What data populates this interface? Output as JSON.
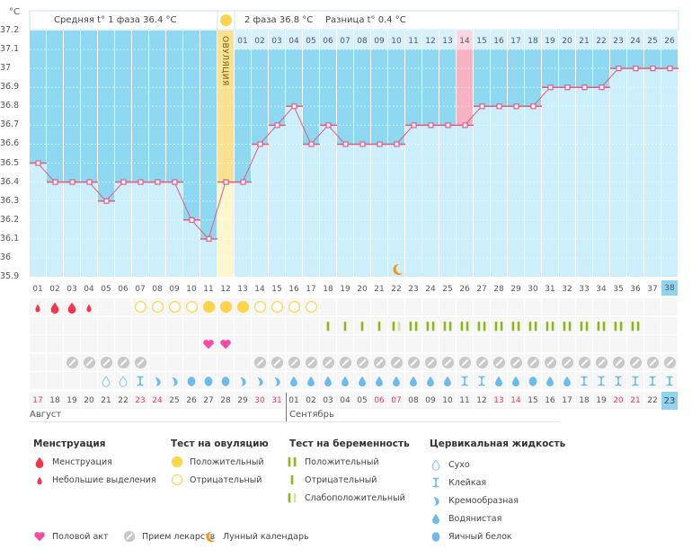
{
  "header": {
    "unit": "°C",
    "phase1": "Средняя t° 1 фаза 36.4 °C",
    "phase2": "2 фаза 36.8 °C",
    "diff": "Разница t° 0.4 °C",
    "ovulation_label": "ОВУЛЯЦИЯ"
  },
  "colors": {
    "upper": "#8fd8f2",
    "lower": "#cdeefb",
    "line": "#e45b82",
    "ovulation": "#fbe08f",
    "ovulation_low": "#fdf7cf",
    "highlight": "#f9b1c4",
    "weekend": "#f0366b"
  },
  "chart_data": {
    "type": "line",
    "ylim": [
      35.9,
      37.2
    ],
    "y_ticks": [
      "37.2",
      "37.1",
      "37",
      "36.9",
      "36.8",
      "36.7",
      "36.6",
      "36.5",
      "36.4",
      "36.3",
      "36.2",
      "36.1",
      "36",
      "35.9"
    ],
    "grid": true,
    "cycle_days": [
      "01",
      "02",
      "03",
      "04",
      "05",
      "06",
      "07",
      "08",
      "09",
      "10",
      "11",
      "12",
      "13",
      "14",
      "15",
      "16",
      "17",
      "18",
      "19",
      "20",
      "21",
      "22",
      "23",
      "24",
      "25",
      "26",
      "27",
      "28",
      "29",
      "30",
      "31",
      "32",
      "33",
      "34",
      "35",
      "36",
      "37",
      "38"
    ],
    "temperatures": [
      36.5,
      36.4,
      36.4,
      36.4,
      36.3,
      36.4,
      36.4,
      36.4,
      36.4,
      36.2,
      36.1,
      36.4,
      36.4,
      36.6,
      36.7,
      36.8,
      36.6,
      36.7,
      36.6,
      36.6,
      36.6,
      36.6,
      36.7,
      36.7,
      36.7,
      36.7,
      36.8,
      36.8,
      36.8,
      36.8,
      36.9,
      36.9,
      36.9,
      36.9,
      37.0,
      37.0,
      37.0,
      37.0
    ],
    "ovulation_day": 12,
    "post_ovulation_labels": [
      "01",
      "02",
      "03",
      "04",
      "05",
      "06",
      "07",
      "08",
      "09",
      "10",
      "11",
      "12",
      "13",
      "14",
      "15",
      "16",
      "17",
      "18",
      "19",
      "20",
      "21",
      "22",
      "23",
      "24",
      "25",
      "26"
    ],
    "highlighted_day": 26,
    "moon_day": 22,
    "current_day": 38
  },
  "rows": {
    "menstruation": [
      "light",
      "heavy",
      "heavy",
      "light",
      "",
      "",
      "",
      "",
      "",
      "",
      "",
      "",
      "",
      "",
      "",
      "",
      "",
      "",
      "",
      "",
      "",
      "",
      "",
      "",
      "",
      "",
      "",
      "",
      "",
      "",
      "",
      "",
      "",
      "",
      "",
      "",
      "",
      ""
    ],
    "ovulation_test": [
      "",
      "",
      "",
      "",
      "",
      "",
      "negative",
      "negative",
      "negative",
      "negative",
      "positive",
      "positive",
      "positive",
      "negative",
      "negative",
      "negative",
      "negative",
      "",
      "",
      "",
      "",
      "",
      "",
      "",
      "",
      "",
      "",
      "",
      "",
      "",
      "",
      "",
      "",
      "",
      "",
      "",
      "",
      ""
    ],
    "pregnancy_test": [
      "",
      "",
      "",
      "",
      "",
      "",
      "",
      "",
      "",
      "",
      "",
      "",
      "",
      "",
      "",
      "",
      "",
      "negative",
      "negative",
      "negative",
      "negative",
      "weak",
      "positive",
      "positive",
      "positive",
      "positive",
      "positive",
      "positive",
      "positive",
      "positive",
      "positive",
      "positive",
      "positive",
      "positive",
      "positive",
      "positive",
      "",
      ""
    ],
    "intercourse": [
      "",
      "",
      "",
      "",
      "",
      "",
      "",
      "",
      "",
      "",
      "yes",
      "yes",
      "",
      "",
      "",
      "",
      "",
      "",
      "",
      "",
      "",
      "",
      "",
      "",
      "",
      "",
      "",
      "",
      "",
      "",
      "",
      "",
      "",
      "",
      "",
      "",
      "",
      ""
    ],
    "medication": [
      "",
      "",
      "yes",
      "yes",
      "yes",
      "yes",
      "yes",
      "",
      "",
      "",
      "",
      "",
      "",
      "yes",
      "yes",
      "yes",
      "yes",
      "yes",
      "yes",
      "yes",
      "yes",
      "yes",
      "yes",
      "yes",
      "yes",
      "yes",
      "yes",
      "yes",
      "yes",
      "yes",
      "yes",
      "yes",
      "yes",
      "yes",
      "yes",
      "yes",
      "yes",
      "yes"
    ],
    "cervical_fluid": [
      "",
      "",
      "",
      "",
      "dry",
      "dry",
      "sticky",
      "creamy",
      "creamy",
      "eggwhite",
      "eggwhite",
      "eggwhite",
      "creamy",
      "creamy",
      "creamy",
      "watery",
      "watery",
      "watery",
      "watery",
      "watery",
      "watery",
      "watery",
      "watery",
      "watery",
      "watery",
      "sticky",
      "sticky",
      "watery",
      "watery",
      "eggwhite",
      "watery",
      "watery",
      "sticky",
      "sticky",
      "sticky",
      "sticky",
      "sticky",
      "sticky"
    ]
  },
  "dates": [
    "17",
    "18",
    "19",
    "20",
    "21",
    "22",
    "23",
    "24",
    "25",
    "26",
    "27",
    "28",
    "29",
    "30",
    "31",
    "01",
    "02",
    "03",
    "04",
    "05",
    "06",
    "07",
    "08",
    "09",
    "10",
    "11",
    "12",
    "13",
    "14",
    "15",
    "16",
    "17",
    "18",
    "19",
    "20",
    "21",
    "22",
    "23"
  ],
  "weekend_dates": [
    true,
    false,
    false,
    false,
    false,
    false,
    true,
    true,
    false,
    false,
    false,
    false,
    false,
    true,
    true,
    false,
    false,
    false,
    false,
    false,
    true,
    true,
    false,
    false,
    false,
    false,
    false,
    true,
    true,
    false,
    false,
    false,
    false,
    false,
    true,
    true,
    false,
    false
  ],
  "months": [
    {
      "label": "Август"
    },
    {
      "label": "Сентябрь"
    }
  ],
  "legend": {
    "menstruation": {
      "title": "Менструация",
      "items": [
        "Менструация",
        "Небольшие выделения"
      ]
    },
    "ovulation": {
      "title": "Тест на овуляцию",
      "items": [
        "Положительный",
        "Отрицательный"
      ]
    },
    "pregnancy": {
      "title": "Тест на беременность",
      "items": [
        "Положительный",
        "Отрицательный",
        "Слабоположительный"
      ]
    },
    "cervical": {
      "title": "Цервикальная жидкость",
      "items": [
        "Сухо",
        "Клейкая",
        "Кремообразная",
        "Водянистая",
        "Яичный белок"
      ]
    },
    "other": [
      "Половой акт",
      "Прием лекарств",
      "Лунный календарь"
    ]
  }
}
